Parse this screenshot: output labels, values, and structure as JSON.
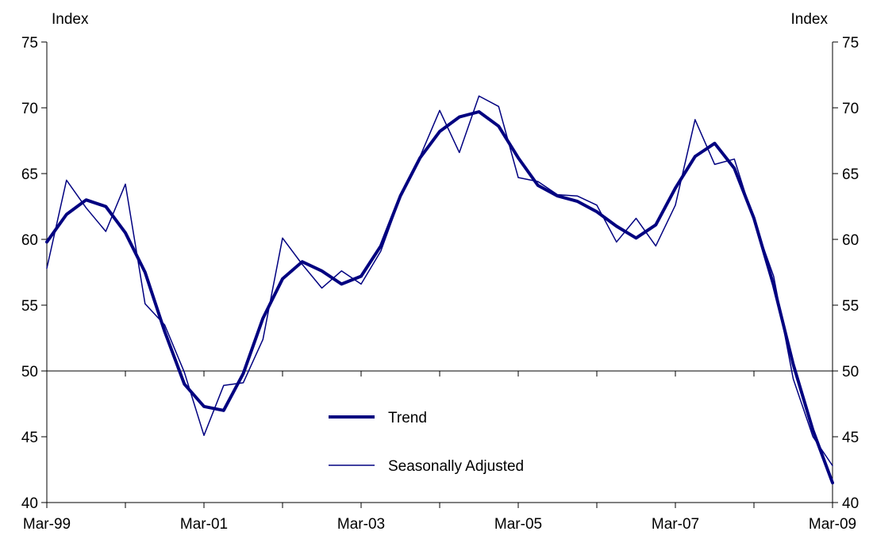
{
  "chart_data": {
    "type": "line",
    "title": "",
    "x_tick_labels": [
      "Mar-99",
      "Mar-01",
      "Mar-03",
      "Mar-05",
      "Mar-07",
      "Mar-09"
    ],
    "x_range": [
      "1999-03",
      "2009-03"
    ],
    "ylim": [
      40,
      75
    ],
    "y_ticks": [
      40,
      45,
      50,
      55,
      60,
      65,
      70,
      75
    ],
    "left_axis_unit": "Index",
    "right_axis_unit": "Index",
    "reference_line": 50,
    "grid": false,
    "legend_position": "center-bottom",
    "series": [
      {
        "name": "Trend",
        "color": "#000080",
        "line_weight": "thick",
        "x": [
          "1999-03",
          "1999-06",
          "1999-09",
          "1999-12",
          "2000-03",
          "2000-06",
          "2000-09",
          "2000-12",
          "2001-03",
          "2001-06",
          "2001-09",
          "2001-12",
          "2002-03",
          "2002-06",
          "2002-09",
          "2002-12",
          "2003-03",
          "2003-06",
          "2003-09",
          "2003-12",
          "2004-03",
          "2004-06",
          "2004-09",
          "2004-12",
          "2005-03",
          "2005-06",
          "2005-09",
          "2005-12",
          "2006-03",
          "2006-06",
          "2006-09",
          "2006-12",
          "2007-03",
          "2007-06",
          "2007-09",
          "2007-12",
          "2008-03",
          "2008-06",
          "2008-09",
          "2008-12",
          "2009-03"
        ],
        "values": [
          59.8,
          61.9,
          63.0,
          62.5,
          60.5,
          57.5,
          53.0,
          49.0,
          47.3,
          47.0,
          49.8,
          54.0,
          57.0,
          58.3,
          57.6,
          56.6,
          57.2,
          59.5,
          63.3,
          66.2,
          68.2,
          69.3,
          69.7,
          68.6,
          66.2,
          64.1,
          63.3,
          62.9,
          62.1,
          61.0,
          60.1,
          61.1,
          63.9,
          66.3,
          67.3,
          65.4,
          61.6,
          56.5,
          50.5,
          45.5,
          41.5
        ]
      },
      {
        "name": "Seasonally Adjusted",
        "color": "#000080",
        "line_weight": "thin",
        "x": [
          "1999-03",
          "1999-06",
          "1999-09",
          "1999-12",
          "2000-03",
          "2000-06",
          "2000-09",
          "2000-12",
          "2001-03",
          "2001-06",
          "2001-09",
          "2001-12",
          "2002-03",
          "2002-06",
          "2002-09",
          "2002-12",
          "2003-03",
          "2003-06",
          "2003-09",
          "2003-12",
          "2004-03",
          "2004-06",
          "2004-09",
          "2004-12",
          "2005-03",
          "2005-06",
          "2005-09",
          "2005-12",
          "2006-03",
          "2006-06",
          "2006-09",
          "2006-12",
          "2007-03",
          "2007-06",
          "2007-09",
          "2007-12",
          "2008-03",
          "2008-06",
          "2008-09",
          "2008-12",
          "2009-03"
        ],
        "values": [
          57.8,
          64.5,
          62.4,
          60.6,
          64.2,
          55.1,
          53.5,
          49.9,
          45.1,
          48.9,
          49.1,
          52.4,
          60.1,
          58.1,
          56.3,
          57.6,
          56.6,
          59.1,
          63.2,
          66.3,
          69.8,
          66.6,
          70.9,
          70.1,
          64.7,
          64.4,
          63.4,
          63.3,
          62.6,
          59.8,
          61.6,
          59.5,
          62.6,
          69.1,
          65.7,
          66.1,
          61.4,
          57.2,
          49.4,
          45.0,
          42.8
        ]
      }
    ]
  }
}
